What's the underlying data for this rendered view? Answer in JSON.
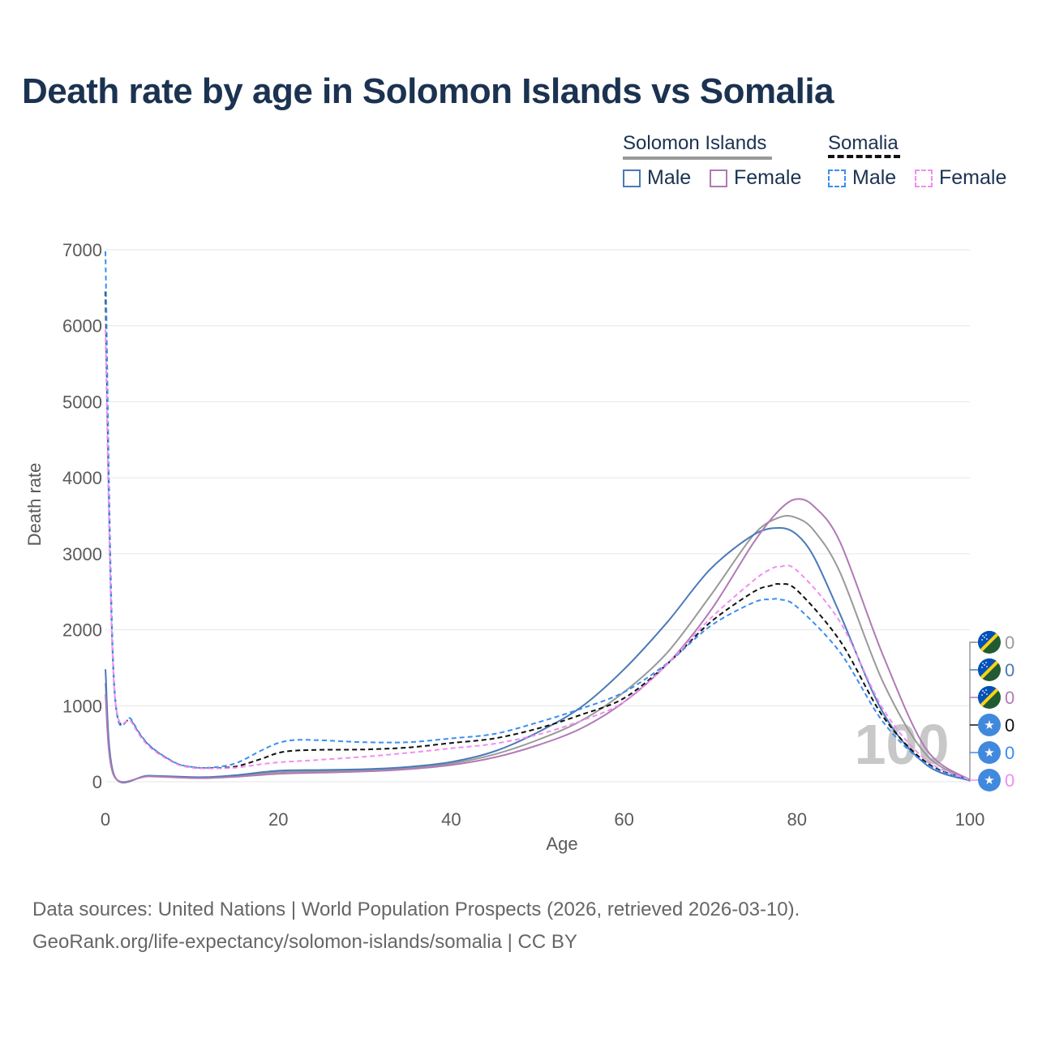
{
  "title": "Death rate by age in Solomon Islands vs Somalia",
  "legend": {
    "groups": [
      {
        "name": "Solomon Islands",
        "underline_color": "#999999",
        "underline_style": "solid",
        "items": [
          {
            "label": "Male",
            "color": "#4a7ab7",
            "style": "solid"
          },
          {
            "label": "Female",
            "color": "#b07ab5",
            "style": "solid"
          }
        ]
      },
      {
        "name": "Somalia",
        "underline_color": "#111111",
        "underline_style": "dashed",
        "items": [
          {
            "label": "Male",
            "color": "#3a8ef0",
            "style": "dashed"
          },
          {
            "label": "Female",
            "color": "#f08ef0",
            "style": "dashed"
          }
        ]
      }
    ]
  },
  "chart_data": {
    "type": "line",
    "title": "Death rate by age in Solomon Islands vs Somalia",
    "xlabel": "Age",
    "ylabel": "Death rate",
    "xlim": [
      0,
      100
    ],
    "ylim": [
      0,
      7000
    ],
    "xticks": [
      0,
      20,
      40,
      60,
      80,
      100
    ],
    "yticks": [
      0,
      1000,
      2000,
      3000,
      4000,
      5000,
      6000,
      7000
    ],
    "grid": true,
    "watermark": "100",
    "series": [
      {
        "name": "Solomon Islands Total",
        "color": "#999999",
        "dash": false,
        "x": [
          0,
          1,
          5,
          10,
          12,
          15,
          20,
          25,
          30,
          35,
          40,
          45,
          50,
          55,
          60,
          65,
          70,
          75,
          78,
          80,
          82,
          85,
          90,
          95,
          100
        ],
        "y": [
          1300,
          80,
          75,
          55,
          55,
          75,
          125,
          135,
          150,
          180,
          240,
          360,
          550,
          800,
          1180,
          1700,
          2450,
          3250,
          3480,
          3470,
          3300,
          2750,
          1300,
          350,
          20
        ]
      },
      {
        "name": "Solomon Islands Male",
        "color": "#4a7ab7",
        "dash": false,
        "x": [
          0,
          1,
          5,
          10,
          12,
          15,
          20,
          25,
          30,
          35,
          40,
          45,
          50,
          55,
          60,
          65,
          70,
          75,
          78,
          80,
          82,
          85,
          90,
          95,
          100
        ],
        "y": [
          1480,
          90,
          80,
          62,
          62,
          85,
          145,
          155,
          165,
          195,
          260,
          400,
          650,
          980,
          1480,
          2100,
          2800,
          3250,
          3340,
          3250,
          2950,
          2200,
          900,
          220,
          15
        ]
      },
      {
        "name": "Solomon Islands Female",
        "color": "#b07ab5",
        "dash": false,
        "x": [
          0,
          1,
          5,
          10,
          12,
          15,
          20,
          25,
          30,
          35,
          40,
          45,
          50,
          55,
          60,
          65,
          70,
          75,
          78,
          80,
          82,
          85,
          90,
          95,
          100
        ],
        "y": [
          1150,
          75,
          70,
          48,
          48,
          65,
          105,
          120,
          135,
          165,
          220,
          320,
          480,
          700,
          1050,
          1550,
          2250,
          3150,
          3580,
          3720,
          3620,
          3150,
          1650,
          420,
          25
        ]
      },
      {
        "name": "Somalia Total",
        "color": "#111111",
        "dash": true,
        "x": [
          0,
          1,
          3,
          5,
          8,
          10,
          12,
          15,
          18,
          20,
          22,
          25,
          30,
          35,
          40,
          45,
          50,
          55,
          60,
          65,
          70,
          75,
          77,
          78,
          80,
          85,
          90,
          95,
          100
        ],
        "y": [
          6450,
          1280,
          800,
          480,
          250,
          190,
          180,
          200,
          300,
          380,
          410,
          420,
          425,
          450,
          510,
          570,
          700,
          880,
          1100,
          1550,
          2100,
          2500,
          2580,
          2600,
          2520,
          1850,
          850,
          250,
          20
        ]
      },
      {
        "name": "Somalia Male",
        "color": "#3a8ef0",
        "dash": true,
        "x": [
          0,
          1,
          3,
          5,
          8,
          10,
          12,
          15,
          18,
          20,
          22,
          25,
          30,
          35,
          40,
          45,
          50,
          55,
          60,
          65,
          70,
          75,
          77,
          78,
          80,
          85,
          90,
          95,
          100
        ],
        "y": [
          6980,
          1300,
          820,
          490,
          255,
          195,
          185,
          240,
          410,
          510,
          550,
          545,
          520,
          520,
          570,
          630,
          780,
          960,
          1180,
          1560,
          2050,
          2360,
          2400,
          2400,
          2300,
          1700,
          780,
          230,
          18
        ]
      },
      {
        "name": "Somalia Female",
        "color": "#f08ef0",
        "dash": true,
        "x": [
          0,
          1,
          3,
          5,
          8,
          10,
          12,
          15,
          18,
          20,
          22,
          25,
          30,
          35,
          40,
          45,
          50,
          55,
          60,
          65,
          70,
          75,
          77,
          78,
          80,
          85,
          90,
          95,
          100
        ],
        "y": [
          5950,
          1260,
          790,
          470,
          245,
          185,
          175,
          185,
          230,
          255,
          270,
          290,
          330,
          380,
          440,
          500,
          620,
          800,
          1050,
          1550,
          2150,
          2650,
          2800,
          2830,
          2780,
          2100,
          950,
          280,
          22
        ]
      }
    ],
    "end_markers": [
      {
        "series": "Solomon Islands Total",
        "flag": "solomon-islands",
        "value_label": "0",
        "color": "#999999"
      },
      {
        "series": "Solomon Islands Male",
        "flag": "solomon-islands",
        "value_label": "0",
        "color": "#4a7ab7"
      },
      {
        "series": "Solomon Islands Female",
        "flag": "solomon-islands",
        "value_label": "0",
        "color": "#b07ab5"
      },
      {
        "series": "Somalia Total",
        "flag": "somalia",
        "value_label": "0",
        "color": "#111111"
      },
      {
        "series": "Somalia Male",
        "flag": "somalia",
        "value_label": "0",
        "color": "#3a8ef0"
      },
      {
        "series": "Somalia Female",
        "flag": "somalia",
        "value_label": "0",
        "color": "#f08ef0"
      }
    ]
  },
  "source": {
    "line1": "Data sources: United Nations | World Population Prospects (2026, retrieved 2026-03-10).",
    "line2": "GeoRank.org/life-expectancy/solomon-islands/somalia | CC BY"
  }
}
